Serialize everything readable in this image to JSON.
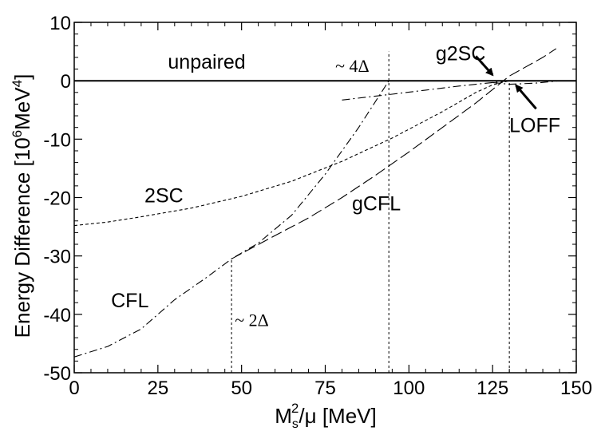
{
  "chart_data": {
    "type": "line",
    "xlabel": {
      "main": "M",
      "sub": "s",
      "sup": "2",
      "rest": "/μ [MeV]"
    },
    "ylabel": {
      "main": "Energy Difference  [10",
      "sup1": "6",
      "mid": "MeV",
      "sup2": "4",
      "end": "]"
    },
    "xlim": [
      0,
      150
    ],
    "ylim": [
      -50,
      10
    ],
    "x_ticks": [
      0,
      25,
      50,
      75,
      100,
      125,
      150
    ],
    "y_ticks": [
      10,
      0,
      -10,
      -20,
      -30,
      -40,
      -50
    ],
    "series": [
      {
        "name": "unpaired",
        "style": "solid",
        "x": [
          0,
          150
        ],
        "y": [
          0,
          0
        ]
      },
      {
        "name": "2SC",
        "style": "dotted",
        "x": [
          0,
          10,
          20,
          35,
          50,
          65,
          80,
          95,
          110,
          120,
          125,
          130
        ],
        "y": [
          -24.8,
          -24.2,
          -23.3,
          -21.8,
          -19.8,
          -17.2,
          -13.8,
          -9.8,
          -5.3,
          -2.0,
          -0.7,
          0
        ]
      },
      {
        "name": "CFL",
        "style": "dashdot",
        "x": [
          0,
          10,
          20,
          30,
          40,
          47,
          55,
          65,
          75,
          85,
          94
        ],
        "y": [
          -47.3,
          -45.5,
          -42.5,
          -37.5,
          -33.5,
          -30.5,
          -27.8,
          -23.0,
          -16.0,
          -8.0,
          0
        ]
      },
      {
        "name": "gCFL",
        "style": "longdash",
        "x": [
          47,
          60,
          70,
          80,
          90,
          100,
          110,
          120,
          130,
          140,
          144
        ],
        "y": [
          -30.5,
          -26.5,
          -23.5,
          -20.0,
          -16.2,
          -12.2,
          -8.0,
          -3.8,
          0.8,
          4.0,
          5.5
        ]
      },
      {
        "name": "g2SC",
        "style": "dashdot",
        "x": [
          80,
          95,
          105,
          115,
          125,
          130
        ],
        "y": [
          -3.3,
          -2.3,
          -1.6,
          -0.9,
          -0.3,
          0
        ]
      },
      {
        "name": "LOFF",
        "style": "dashdot",
        "x": [
          125,
          130,
          138,
          145
        ],
        "y": [
          -0.3,
          -0.6,
          -0.4,
          0
        ]
      }
    ],
    "vlines": [
      {
        "x": 47,
        "y0": -50,
        "y1": -30.5
      },
      {
        "x": 94,
        "y0": -50,
        "y1": 5
      },
      {
        "x": 130,
        "y0": -50,
        "y1": 0
      }
    ],
    "annotations": {
      "unpaired": {
        "text": "unpaired",
        "x": 28,
        "y": 2.1
      },
      "2SC": {
        "text": "2SC",
        "x": 21,
        "y": -20.8
      },
      "CFL": {
        "text": "CFL",
        "x": 11,
        "y": -38.8
      },
      "gCFL": {
        "text": "gCFL",
        "x": 83,
        "y": -22.2
      },
      "g2SC": {
        "text": "g2SC",
        "x": 108,
        "y": 3.5
      },
      "LOFF": {
        "text": "LOFF",
        "x": 130,
        "y": -8.8
      },
      "four_delta": {
        "text": "~ 4Δ",
        "x": 78,
        "y": 1.5
      },
      "two_delta": {
        "text": "~ 2Δ",
        "x": 48,
        "y": -42
      }
    },
    "arrows": [
      {
        "label": "g2SC",
        "from": [
          120,
          4.2
        ],
        "to": [
          125,
          1.0
        ]
      },
      {
        "label": "LOFF",
        "from": [
          138,
          -4.8
        ],
        "to": [
          132,
          -0.8
        ]
      }
    ]
  }
}
